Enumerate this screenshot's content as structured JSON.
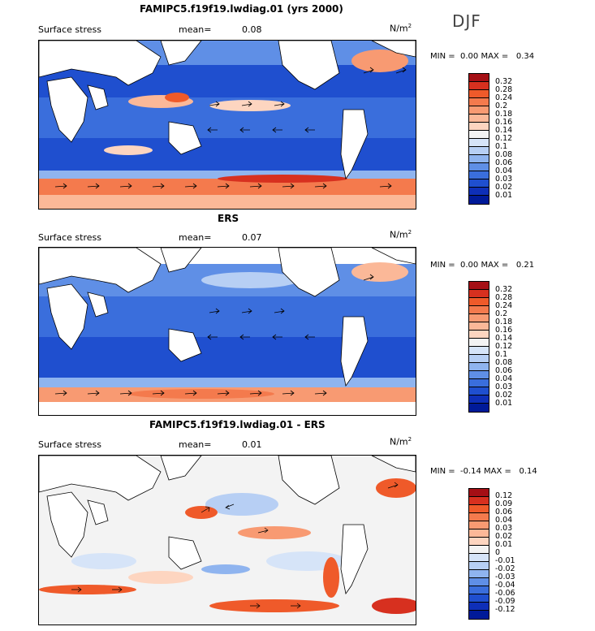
{
  "season": "DJF",
  "panels": [
    {
      "title": "FAMIPC5.f19f19.lwdiag.01 (yrs 2000)",
      "field": "Surface stress",
      "mean_label": "mean=",
      "mean_value": "0.08",
      "units": "N/m",
      "units_exp": "2",
      "min_label": "MIN =",
      "min_value": "0.00",
      "max_label": "MAX =",
      "max_value": "0.34",
      "levels": [
        "0.32",
        "0.28",
        "0.24",
        "0.2",
        "0.18",
        "0.16",
        "0.14",
        "0.12",
        "0.1",
        "0.08",
        "0.06",
        "0.04",
        "0.03",
        "0.02",
        "0.01"
      ],
      "colors": [
        "#a50f15",
        "#d7301f",
        "#ef5a2a",
        "#f47a4d",
        "#f89a72",
        "#fbb898",
        "#fdd5c0",
        "#f3f3f3",
        "#d6e4f8",
        "#b7cff4",
        "#8fb4ef",
        "#5f8fe6",
        "#3a6edc",
        "#1f4fcf",
        "#0e2fb8",
        "#001a99"
      ]
    },
    {
      "title": "ERS",
      "field": "Surface stress",
      "mean_label": "mean=",
      "mean_value": "0.07",
      "units": "N/m",
      "units_exp": "2",
      "min_label": "MIN =",
      "min_value": "0.00",
      "max_label": "MAX =",
      "max_value": "0.21",
      "levels": [
        "0.32",
        "0.28",
        "0.24",
        "0.2",
        "0.18",
        "0.16",
        "0.14",
        "0.12",
        "0.1",
        "0.08",
        "0.06",
        "0.04",
        "0.03",
        "0.02",
        "0.01"
      ],
      "colors": [
        "#a50f15",
        "#d7301f",
        "#ef5a2a",
        "#f47a4d",
        "#f89a72",
        "#fbb898",
        "#fdd5c0",
        "#f3f3f3",
        "#d6e4f8",
        "#b7cff4",
        "#8fb4ef",
        "#5f8fe6",
        "#3a6edc",
        "#1f4fcf",
        "#0e2fb8",
        "#001a99"
      ]
    },
    {
      "title": "FAMIPC5.f19f19.lwdiag.01 - ERS",
      "field": "Surface stress",
      "mean_label": "mean=",
      "mean_value": "0.01",
      "units": "N/m",
      "units_exp": "2",
      "min_label": "MIN =",
      "min_value": "-0.14",
      "max_label": "MAX =",
      "max_value": "0.14",
      "levels": [
        "0.12",
        "0.09",
        "0.06",
        "0.04",
        "0.03",
        "0.02",
        "0.01",
        "0",
        "-0.01",
        "-0.02",
        "-0.03",
        "-0.04",
        "-0.06",
        "-0.09",
        "-0.12"
      ],
      "colors": [
        "#a50f15",
        "#d7301f",
        "#ef5a2a",
        "#f47a4d",
        "#f89a72",
        "#fbb898",
        "#fdd5c0",
        "#f3f3f3",
        "#d6e4f8",
        "#b7cff4",
        "#8fb4ef",
        "#5f8fe6",
        "#3a6edc",
        "#1f4fcf",
        "#0e2fb8",
        "#001a99"
      ]
    }
  ]
}
